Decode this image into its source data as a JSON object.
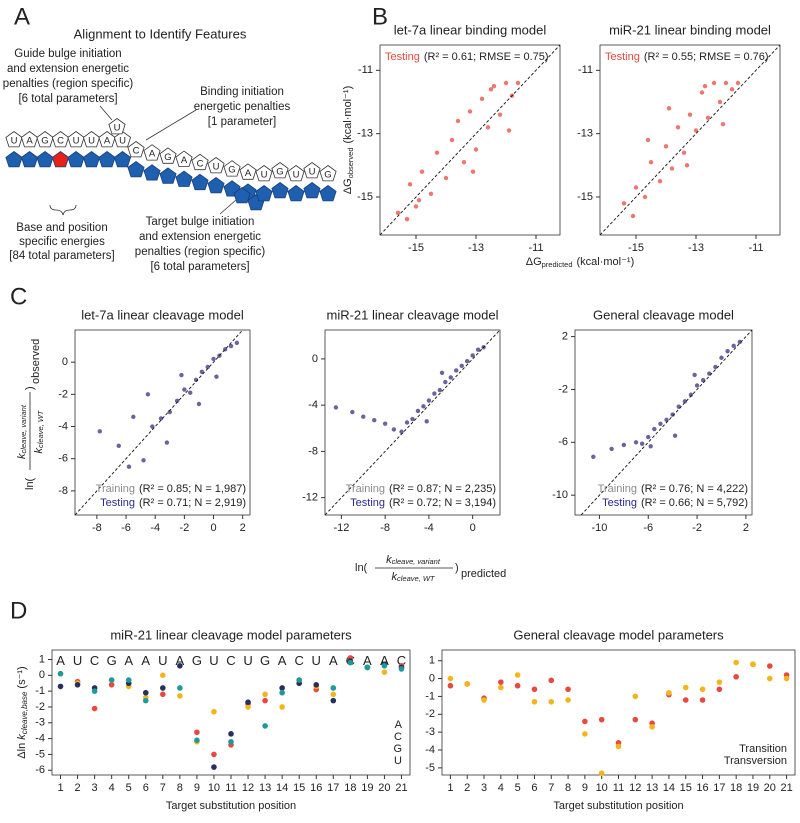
{
  "panel_labels": [
    "A",
    "B",
    "C",
    "D"
  ],
  "diagram": {
    "title": "Alignment to Identify Features",
    "guide_bulge": [
      "Guide bulge initiation",
      "and extension energetic",
      "penalties (region specific)",
      "[6 total parameters]"
    ],
    "binding_initiation": [
      "Binding initiation",
      "energetic penalties",
      "[1 parameter]"
    ],
    "base_position": [
      "Base and position",
      "specific energies",
      "[84 total parameters]"
    ],
    "target_bulge": [
      "Target bulge initiation",
      "and extension energetic",
      "penalties (region specific)",
      "[6 total parameters]"
    ],
    "guide_seed": [
      "U",
      "A",
      "G",
      "C",
      "U",
      "U",
      "A",
      "U"
    ],
    "guide_bulge_nt": [
      "U"
    ],
    "guide_middle": [
      "C",
      "A",
      "G",
      "A",
      "C",
      "U",
      "G",
      "A"
    ],
    "guide_tail": [
      "U",
      "G",
      "U",
      "U",
      "G"
    ]
  },
  "shared_labels": {
    "B_x": {
      "main": "ΔG",
      "sub": "predicted",
      "unit": "(kcal·mol⁻¹)"
    },
    "B_y": {
      "main": "ΔG",
      "sub": "observed",
      "unit": "(kcal·mol⁻¹)"
    },
    "C_x": {
      "prefix": "ln(",
      "num": "k",
      "num_sub": "cleave, variant",
      "den": "k",
      "den_sub": "cleave, WT",
      "suffix": ")",
      "sub": "predicted"
    },
    "C_y": {
      "prefix": "ln(",
      "num": "k",
      "num_sub": "cleave, variant",
      "den": "k",
      "den_sub": "cleave, WT",
      "suffix": ")",
      "sub": "observed"
    }
  },
  "chart_data": [
    {
      "type": "scatter",
      "title": "let-7a linear binding model",
      "color": "#e8483f",
      "annotations": [
        {
          "label": "Testing",
          "stats": "(R² = 0.61; RMSE = 0.75)",
          "color": "#e8483f"
        }
      ],
      "xlim": [
        -16.2,
        -10.2
      ],
      "ylim": [
        -16.2,
        -10.2
      ],
      "xticks": [
        -15,
        -13,
        -11
      ],
      "yticks": [
        -15,
        -13,
        -11
      ],
      "x": [
        -15.6,
        -15.2,
        -15.0,
        -14.8,
        -14.5,
        -14.3,
        -14.0,
        -13.8,
        -13.6,
        -13.4,
        -13.2,
        -13.0,
        -12.8,
        -12.6,
        -12.4,
        -12.2,
        -12.0,
        -11.8,
        -11.6,
        -14.9,
        -13.1,
        -12.5,
        -15.3,
        -11.9
      ],
      "values": [
        -15.5,
        -14.6,
        -15.3,
        -14.2,
        -14.9,
        -13.6,
        -14.4,
        -13.2,
        -12.6,
        -13.9,
        -12.3,
        -13.5,
        -11.9,
        -12.8,
        -11.5,
        -12.4,
        -11.4,
        -11.8,
        -11.4,
        -15.1,
        -14.2,
        -11.6,
        -15.7,
        -12.9
      ]
    },
    {
      "type": "scatter",
      "title": "miR-21 linear binding model",
      "color": "#e8483f",
      "annotations": [
        {
          "label": "Testing",
          "stats": "(R² = 0.55; RMSE = 0.76)",
          "color": "#e8483f"
        }
      ],
      "xlim": [
        -16.2,
        -10.2
      ],
      "ylim": [
        -16.2,
        -10.2
      ],
      "xticks": [
        -15,
        -13,
        -11
      ],
      "yticks": [
        -15,
        -13,
        -11
      ],
      "x": [
        -15.4,
        -15.0,
        -14.7,
        -14.5,
        -14.2,
        -14.0,
        -13.8,
        -13.6,
        -13.4,
        -13.2,
        -13.0,
        -12.8,
        -12.6,
        -12.4,
        -12.2,
        -12.0,
        -11.8,
        -11.6,
        -14.6,
        -13.3,
        -12.7,
        -15.1,
        -12.1,
        -13.9
      ],
      "values": [
        -15.2,
        -14.7,
        -15.0,
        -13.9,
        -14.5,
        -13.4,
        -14.1,
        -12.8,
        -13.6,
        -12.4,
        -12.9,
        -11.7,
        -12.5,
        -11.4,
        -12.0,
        -11.4,
        -11.6,
        -11.4,
        -13.2,
        -14.0,
        -11.5,
        -15.6,
        -12.7,
        -12.2
      ]
    },
    {
      "type": "scatter",
      "title": "let-7a linear cleavage model",
      "color": "#3a2d7e",
      "annotations": [
        {
          "label": "Training",
          "stats": "(R² = 0.85; N = 1,987)",
          "color": "#8a8a8a"
        },
        {
          "label": "Testing",
          "stats": "(R² = 0.71; N = 2,919)",
          "color": "#2b2a8c"
        }
      ],
      "xlim": [
        -9.5,
        2.5
      ],
      "ylim": [
        -9.5,
        2
      ],
      "xticks": [
        -8,
        -6,
        -4,
        -2,
        0,
        2
      ],
      "yticks": [
        -8,
        -6,
        -4,
        -2,
        0
      ],
      "x": [
        -7.8,
        -6.5,
        -5.5,
        -4.8,
        -4.2,
        -3.6,
        -3.0,
        -2.5,
        -2.0,
        -1.6,
        -1.2,
        -0.8,
        -0.4,
        0,
        0.4,
        0.8,
        1.2,
        1.6,
        -3.2,
        -2.2,
        -4.5,
        -1.0,
        0.2,
        -5.8
      ],
      "values": [
        -4.3,
        -5.2,
        -3.4,
        -6.1,
        -4.0,
        -3.5,
        -3.1,
        -2.4,
        -1.7,
        -1.9,
        -1.1,
        -0.6,
        -0.3,
        0.2,
        0.4,
        0.8,
        1.0,
        1.2,
        -5.0,
        -0.8,
        -2.0,
        -2.6,
        -0.9,
        -6.5
      ]
    },
    {
      "type": "scatter",
      "title": "miR-21 linear cleavage model",
      "color": "#3a2d7e",
      "annotations": [
        {
          "label": "Training",
          "stats": "(R² = 0.87; N = 2,235)",
          "color": "#8a8a8a"
        },
        {
          "label": "Testing",
          "stats": "(R² = 0.72; N = 3,194)",
          "color": "#2b2a8c"
        }
      ],
      "xlim": [
        -13.5,
        2.5
      ],
      "ylim": [
        -13.5,
        2.5
      ],
      "xticks": [
        -12,
        -8,
        -4,
        0
      ],
      "yticks": [
        -12,
        -8,
        -4,
        0
      ],
      "x": [
        -12.5,
        -11,
        -10,
        -9,
        -8,
        -7.2,
        -6.5,
        -6,
        -5.5,
        -5,
        -4.5,
        -4,
        -3.5,
        -3,
        -2.5,
        -2,
        -1.5,
        -1,
        -0.5,
        0,
        0.5,
        1,
        -4.2,
        -2.8
      ],
      "values": [
        -4.2,
        -4.6,
        -5.0,
        -5.3,
        -5.6,
        -6.1,
        -6.3,
        -5.5,
        -5.2,
        -4.5,
        -4.1,
        -3.6,
        -3.0,
        -2.7,
        -2.0,
        -1.6,
        -1.0,
        -0.6,
        -0.2,
        0.3,
        0.8,
        1.0,
        -5.4,
        -1.2
      ]
    },
    {
      "type": "scatter",
      "title": "General cleavage model",
      "color": "#3a2d7e",
      "annotations": [
        {
          "label": "Training",
          "stats": "(R² = 0.76; N = 4,222)",
          "color": "#8a8a8a"
        },
        {
          "label": "Testing",
          "stats": "(R² = 0.66; N = 5,792)",
          "color": "#2b2a8c"
        }
      ],
      "xlim": [
        -12,
        2.5
      ],
      "ylim": [
        -11.5,
        2.5
      ],
      "xticks": [
        -10,
        -6,
        -2,
        2
      ],
      "yticks": [
        -10,
        -6,
        -2,
        2
      ],
      "x": [
        -10.5,
        -9,
        -8,
        -7,
        -6.5,
        -6,
        -5.5,
        -5,
        -4.5,
        -4,
        -3.5,
        -3,
        -2.5,
        -2,
        -1.5,
        -1,
        -0.5,
        0,
        0.5,
        1,
        1.5,
        -3.8,
        -2.2,
        -5.8
      ],
      "values": [
        -7.1,
        -6.5,
        -6.2,
        -6.0,
        -6.1,
        -5.6,
        -5.0,
        -4.6,
        -4.3,
        -3.9,
        -3.3,
        -2.9,
        -2.4,
        -1.7,
        -1.3,
        -0.8,
        -0.3,
        0.4,
        0.9,
        1.3,
        1.6,
        -5.5,
        -0.9,
        -6.3
      ]
    },
    {
      "type": "dot",
      "title": "miR-21 linear cleavage model parameters",
      "xlabel": "Target substitution position",
      "ylabel": {
        "main": "Δln",
        "var": "k",
        "sub": "cleave,base",
        "unit": "(s⁻¹)"
      },
      "sequence": [
        "A",
        "U",
        "C",
        "G",
        "A",
        "A",
        "U",
        "A",
        "G",
        "U",
        "C",
        "U",
        "G",
        "A",
        "C",
        "U",
        "A",
        "C",
        "A",
        "A",
        "C"
      ],
      "categories": [
        "1",
        "2",
        "3",
        "4",
        "5",
        "6",
        "7",
        "8",
        "9",
        "10",
        "11",
        "12",
        "13",
        "14",
        "15",
        "16",
        "17",
        "18",
        "19",
        "20",
        "21"
      ],
      "ylim": [
        -6.3,
        1.6
      ],
      "yticks": [
        1,
        0,
        -1,
        -2,
        -3,
        -4,
        -5,
        -6
      ],
      "series": [
        {
          "name": "A",
          "color": "#e8483f",
          "values": [
            null,
            -0.4,
            -2.1,
            -0.6,
            null,
            null,
            -1.2,
            null,
            -3.6,
            -5.0,
            -4.4,
            -1.8,
            -1.6,
            null,
            -0.3,
            -0.9,
            null,
            1.1,
            null,
            null,
            0.6
          ]
        },
        {
          "name": "C",
          "color": "#f2b51c",
          "values": [
            0.1,
            -0.5,
            null,
            -0.3,
            -0.7,
            -1.4,
            0.0,
            -1.3,
            -4.2,
            -2.3,
            null,
            -2.0,
            -1.2,
            -2.0,
            null,
            -0.7,
            -1.2,
            null,
            0.5,
            0.2,
            null
          ]
        },
        {
          "name": "G",
          "color": "#26305e",
          "values": [
            -0.7,
            -0.6,
            -0.8,
            null,
            -0.5,
            -1.1,
            -0.8,
            0.6,
            null,
            -5.8,
            -3.7,
            -1.7,
            null,
            -0.8,
            -0.5,
            -0.6,
            -1.6,
            0.9,
            0.5,
            0.7,
            0.5
          ]
        },
        {
          "name": "U",
          "color": "#1d9a9a",
          "values": [
            0.1,
            null,
            -1.0,
            -0.3,
            -0.3,
            -1.6,
            null,
            -0.8,
            -4.1,
            null,
            -4.2,
            null,
            -3.2,
            -1.1,
            -0.3,
            null,
            -0.8,
            0.8,
            0.5,
            0.6,
            0.4
          ]
        }
      ]
    },
    {
      "type": "dot",
      "title": "General cleavage model parameters",
      "xlabel": "Target substitution position",
      "categories": [
        "1",
        "2",
        "3",
        "4",
        "5",
        "6",
        "7",
        "8",
        "9",
        "10",
        "11",
        "12",
        "13",
        "14",
        "15",
        "16",
        "17",
        "18",
        "19",
        "20",
        "21"
      ],
      "ylim": [
        -5.4,
        1.6
      ],
      "yticks": [
        1,
        0,
        -1,
        -2,
        -3,
        -4,
        -5
      ],
      "series": [
        {
          "name": "Transition",
          "color": "#e8483f",
          "values": [
            -0.4,
            -0.3,
            -1.1,
            -0.2,
            -0.4,
            -0.6,
            -0.1,
            -0.6,
            -2.4,
            -2.3,
            -3.6,
            -2.3,
            -2.5,
            -0.9,
            -1.2,
            -1.2,
            -0.6,
            0.1,
            0.8,
            0.7,
            0.2
          ]
        },
        {
          "name": "Transversion",
          "color": "#f2b51c",
          "values": [
            0.0,
            -0.3,
            -1.2,
            -0.5,
            0.2,
            -1.3,
            -1.3,
            -1.2,
            -3.1,
            -5.3,
            -3.8,
            -1.0,
            -2.7,
            -0.8,
            -0.5,
            -0.6,
            -0.2,
            0.9,
            0.8,
            0.0,
            0.0
          ]
        }
      ]
    }
  ]
}
